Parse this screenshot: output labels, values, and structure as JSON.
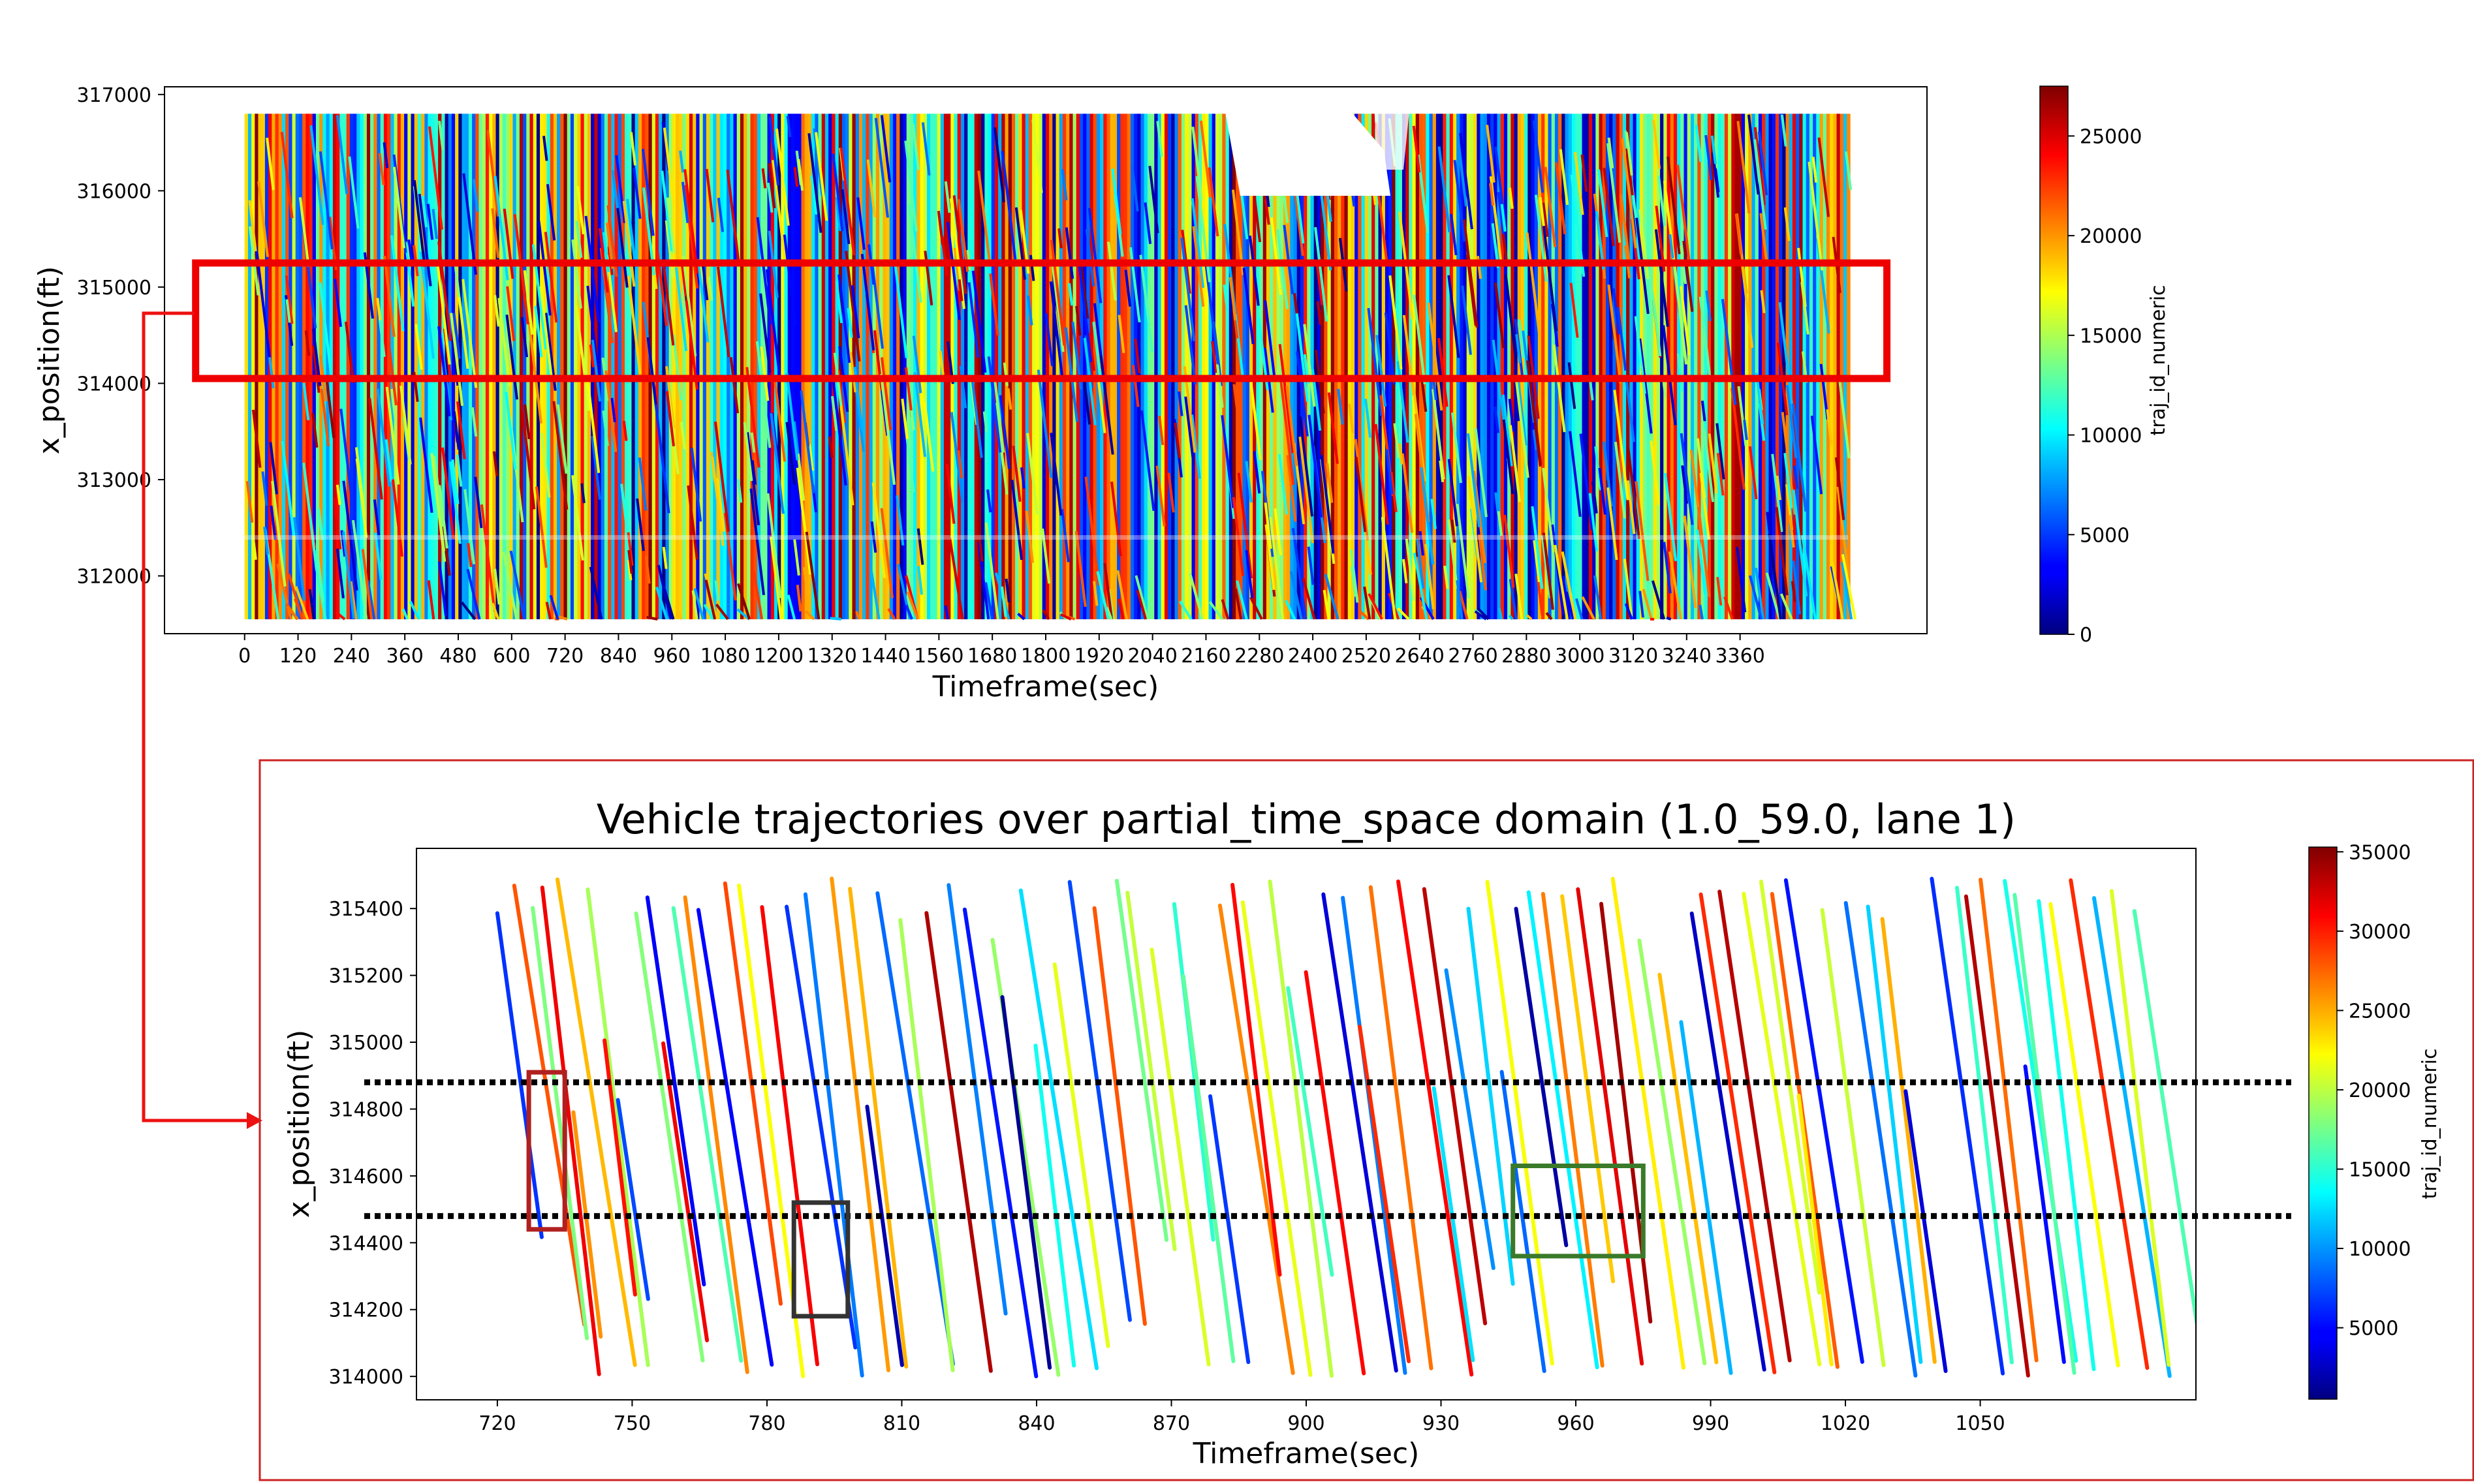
{
  "chart_data": [
    {
      "type": "scatter",
      "xlabel": "Timeframe(sec)",
      "ylabel": "x_position(ft)",
      "x_ticks": [
        0,
        120,
        240,
        360,
        480,
        600,
        720,
        840,
        960,
        1080,
        1200,
        1320,
        1440,
        1560,
        1680,
        1800,
        1920,
        2040,
        2160,
        2280,
        2400,
        2520,
        2640,
        2760,
        2880,
        3000,
        3120,
        3240,
        3360
      ],
      "y_ticks": [
        312000,
        313000,
        314000,
        315000,
        316000,
        317000
      ],
      "xlim": [
        -180,
        3780
      ],
      "ylim": [
        311400,
        317080
      ],
      "data_extent": {
        "x": [
          0,
          3600
        ],
        "y": [
          311550,
          316800
        ]
      },
      "colorbar": {
        "label": "traj_id_numeric",
        "ticks": [
          0,
          5000,
          10000,
          15000,
          20000,
          25000
        ],
        "range": [
          0,
          27500
        ],
        "colormap": "jet"
      },
      "highlight_region": {
        "x": [
          -110,
          3690
        ],
        "y": [
          314050,
          315250
        ],
        "color": "#ee0000"
      },
      "grid": false
    },
    {
      "type": "line",
      "title": "Vehicle trajectories over partial_time_space domain (1.0_59.0, lane 1)",
      "xlabel": "Timeframe(sec)",
      "ylabel": "x_position(ft)",
      "x_ticks": [
        720,
        750,
        780,
        810,
        840,
        870,
        900,
        930,
        960,
        990,
        1020,
        1050
      ],
      "y_ticks": [
        314000,
        314200,
        314400,
        314600,
        314800,
        315000,
        315200,
        315400
      ],
      "xlim": [
        702,
        1098
      ],
      "ylim": [
        313930,
        315580
      ],
      "colorbar": {
        "label": "traj_id_numeric",
        "ticks": [
          5000,
          10000,
          15000,
          20000,
          25000,
          30000,
          35000
        ],
        "range": [
          500,
          35300
        ],
        "colormap": "jet"
      },
      "reference_lines": [
        314880,
        314480
      ],
      "boxes": [
        {
          "x": [
            727,
            735
          ],
          "y": [
            314440,
            314910
          ],
          "color": "#b02020"
        },
        {
          "x": [
            786,
            798
          ],
          "y": [
            314180,
            314520
          ],
          "color": "#333333"
        },
        {
          "x": [
            946,
            975
          ],
          "y": [
            314360,
            314630
          ],
          "color": "#3a7a2a"
        }
      ],
      "grid": false
    }
  ]
}
